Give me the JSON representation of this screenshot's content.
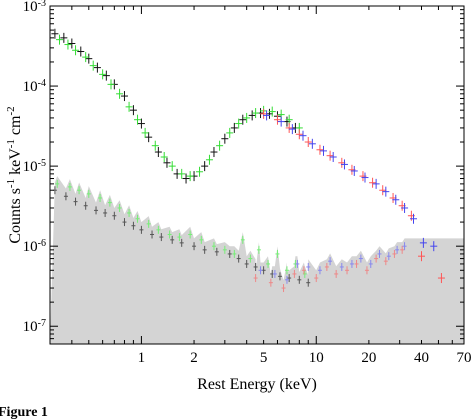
{
  "chart_data": {
    "type": "scatter",
    "xlabel": "Rest Energy (keV)",
    "ylabel": "Counts s⁻¹ keV⁻¹ cm⁻²",
    "ylabel_parts": [
      "Counts s",
      "-1",
      " keV",
      "-1",
      " cm",
      "-2"
    ],
    "xscale": "log",
    "yscale": "log",
    "xlim": [
      0.3,
      70
    ],
    "ylim": [
      6e-08,
      0.001
    ],
    "x_ticks": [
      {
        "value": 1,
        "label": "1"
      },
      {
        "value": 2,
        "label": "2"
      },
      {
        "value": 5,
        "label": "5"
      },
      {
        "value": 10,
        "label": "10"
      },
      {
        "value": 20,
        "label": "20"
      },
      {
        "value": 40,
        "label": "40"
      },
      {
        "value": 70,
        "label": "70"
      }
    ],
    "y_ticks": [
      {
        "value": 1e-07,
        "mantissa": "10",
        "exp": "-7"
      },
      {
        "value": 1e-06,
        "mantissa": "10",
        "exp": "-6"
      },
      {
        "value": 1e-05,
        "mantissa": "10",
        "exp": "-5"
      },
      {
        "value": 0.0001,
        "mantissa": "10",
        "exp": "-4"
      },
      {
        "value": 0.001,
        "mantissa": "10",
        "exp": "-3"
      }
    ],
    "grid": false,
    "legend": "none",
    "caption_fragment": "Figure 1",
    "series": [
      {
        "role": "source spectrum",
        "color": "#111111",
        "x": [
          0.32,
          0.36,
          0.4,
          0.45,
          0.5,
          0.56,
          0.63,
          0.7,
          0.8,
          0.9,
          1.0,
          1.1,
          1.25,
          1.4,
          1.6,
          1.8,
          2.0,
          2.3,
          2.6,
          3.0,
          3.4,
          3.8,
          4.3,
          4.8,
          5.4,
          6.0,
          6.8,
          7.6
        ],
        "y": [
          0.00045,
          0.0004,
          0.00034,
          0.00027,
          0.00022,
          0.00017,
          0.000135,
          0.000105,
          7.5e-05,
          5e-05,
          3.4e-05,
          2.3e-05,
          1.5e-05,
          1.1e-05,
          8e-06,
          7e-06,
          7.5e-06,
          1e-05,
          1.5e-05,
          2.2e-05,
          3e-05,
          3.8e-05,
          4.3e-05,
          4.6e-05,
          4.5e-05,
          4.2e-05,
          3.6e-05,
          3e-05
        ]
      },
      {
        "role": "source spectrum",
        "color": "#33dd33",
        "x": [
          0.34,
          0.38,
          0.42,
          0.48,
          0.53,
          0.6,
          0.67,
          0.75,
          0.85,
          0.95,
          1.05,
          1.2,
          1.35,
          1.5,
          1.7,
          1.9,
          2.15,
          2.45,
          2.8,
          3.2,
          3.6,
          4.0,
          4.5,
          5.0,
          5.6,
          6.3,
          7.0,
          8.0
        ],
        "y": [
          0.00038,
          0.00033,
          0.00028,
          0.00023,
          0.00018,
          0.00014,
          0.000105,
          8e-05,
          5.5e-05,
          3.8e-05,
          2.6e-05,
          1.8e-05,
          1.3e-05,
          1e-05,
          8e-06,
          7.5e-06,
          8.5e-06,
          1.2e-05,
          1.8e-05,
          2.6e-05,
          3.4e-05,
          4e-05,
          4.6e-05,
          4.9e-05,
          4.8e-05,
          4.4e-05,
          3.8e-05,
          3e-05
        ]
      },
      {
        "role": "source spectrum",
        "color": "#ff5555",
        "x": [
          5.0,
          6.0,
          7.0,
          8.0,
          9.0,
          10.5,
          12.0,
          14.0,
          16.0,
          18.5,
          21.0,
          24.0,
          27.5,
          31.0,
          35.0,
          40.0,
          52.0
        ],
        "y": [
          4.5e-05,
          3.8e-05,
          3e-05,
          2.5e-05,
          2e-05,
          1.6e-05,
          1.35e-05,
          1.1e-05,
          9e-06,
          7.5e-06,
          6.2e-06,
          5e-06,
          4e-06,
          3.2e-06,
          2.4e-06,
          7.5e-07,
          4e-07
        ]
      },
      {
        "role": "source spectrum",
        "color": "#4444ee",
        "x": [
          5.2,
          6.3,
          7.3,
          8.4,
          9.5,
          11.0,
          12.5,
          14.5,
          16.5,
          19.0,
          22.0,
          25.0,
          28.5,
          32.0,
          36.0,
          41.0,
          47.0
        ],
        "y": [
          4.3e-05,
          3.6e-05,
          2.9e-05,
          2.4e-05,
          1.9e-05,
          1.55e-05,
          1.3e-05,
          1.05e-05,
          8.7e-06,
          7.2e-06,
          6e-06,
          4.8e-06,
          3.8e-06,
          3e-06,
          2.2e-06,
          1.1e-06,
          1e-06
        ]
      },
      {
        "role": "background",
        "color": "#555555",
        "x": [
          0.32,
          0.37,
          0.42,
          0.48,
          0.55,
          0.62,
          0.7,
          0.8,
          0.9,
          1.0,
          1.15,
          1.3,
          1.5,
          1.7,
          2.0,
          2.3,
          2.7,
          3.2,
          3.6,
          4.0,
          4.5,
          5.0,
          5.6,
          6.2,
          7.0,
          8.0,
          9.0
        ],
        "y": [
          5e-06,
          4.2e-06,
          3.6e-06,
          3.2e-06,
          2.8e-06,
          2.6e-06,
          2.4e-06,
          2e-06,
          1.8e-06,
          1.6e-06,
          1.4e-06,
          1.3e-06,
          1.2e-06,
          1.1e-06,
          1e-06,
          9e-07,
          8.5e-07,
          8e-07,
          7e-07,
          6e-07,
          5.5e-07,
          5e-07,
          4.5e-07,
          4.2e-07,
          4e-07,
          3.8e-07,
          3.5e-07
        ]
      },
      {
        "role": "background",
        "color": "#77ee77",
        "x": [
          0.33,
          0.39,
          0.44,
          0.5,
          0.58,
          0.66,
          0.75,
          0.85,
          0.95,
          1.1,
          1.25,
          1.45,
          1.65,
          1.9,
          2.2,
          2.6,
          3.0,
          3.4,
          3.8,
          4.2,
          4.7,
          5.3,
          6.0,
          6.8,
          7.6,
          8.6
        ],
        "y": [
          6e-06,
          5.5e-06,
          5e-06,
          4.5e-06,
          4e-06,
          3.5e-06,
          3e-06,
          2.6e-06,
          2.2e-06,
          1.9e-06,
          1.6e-06,
          1.4e-06,
          1.3e-06,
          1.4e-06,
          1.2e-06,
          1e-06,
          9e-07,
          8e-07,
          1.2e-06,
          7e-07,
          9e-07,
          6e-07,
          8e-07,
          5e-07,
          6e-07,
          4.5e-07
        ]
      },
      {
        "role": "background",
        "color": "#ee8888",
        "x": [
          4.5,
          5.5,
          6.5,
          7.5,
          8.5,
          10.0,
          11.5,
          13.0,
          15.0,
          17.0,
          19.5,
          22.0,
          25.0,
          28.0,
          31.0
        ],
        "y": [
          4e-07,
          3.5e-07,
          3e-07,
          4.5e-07,
          5e-07,
          4e-07,
          5.5e-07,
          4.5e-07,
          5e-07,
          6e-07,
          5e-07,
          7e-07,
          6.5e-07,
          8e-07,
          9e-07
        ]
      },
      {
        "role": "background",
        "color": "#8888ee",
        "x": [
          4.8,
          5.8,
          6.8,
          7.8,
          9.0,
          10.5,
          12.0,
          14.0,
          16.0,
          18.0,
          20.5,
          23.0,
          26.0,
          29.0,
          32.0
        ],
        "y": [
          5e-07,
          4.5e-07,
          3.8e-07,
          6e-07,
          5.5e-07,
          5e-07,
          6.5e-07,
          5.5e-07,
          6e-07,
          7e-07,
          6e-07,
          8e-07,
          7.5e-07,
          9e-07,
          1e-06
        ]
      }
    ]
  }
}
